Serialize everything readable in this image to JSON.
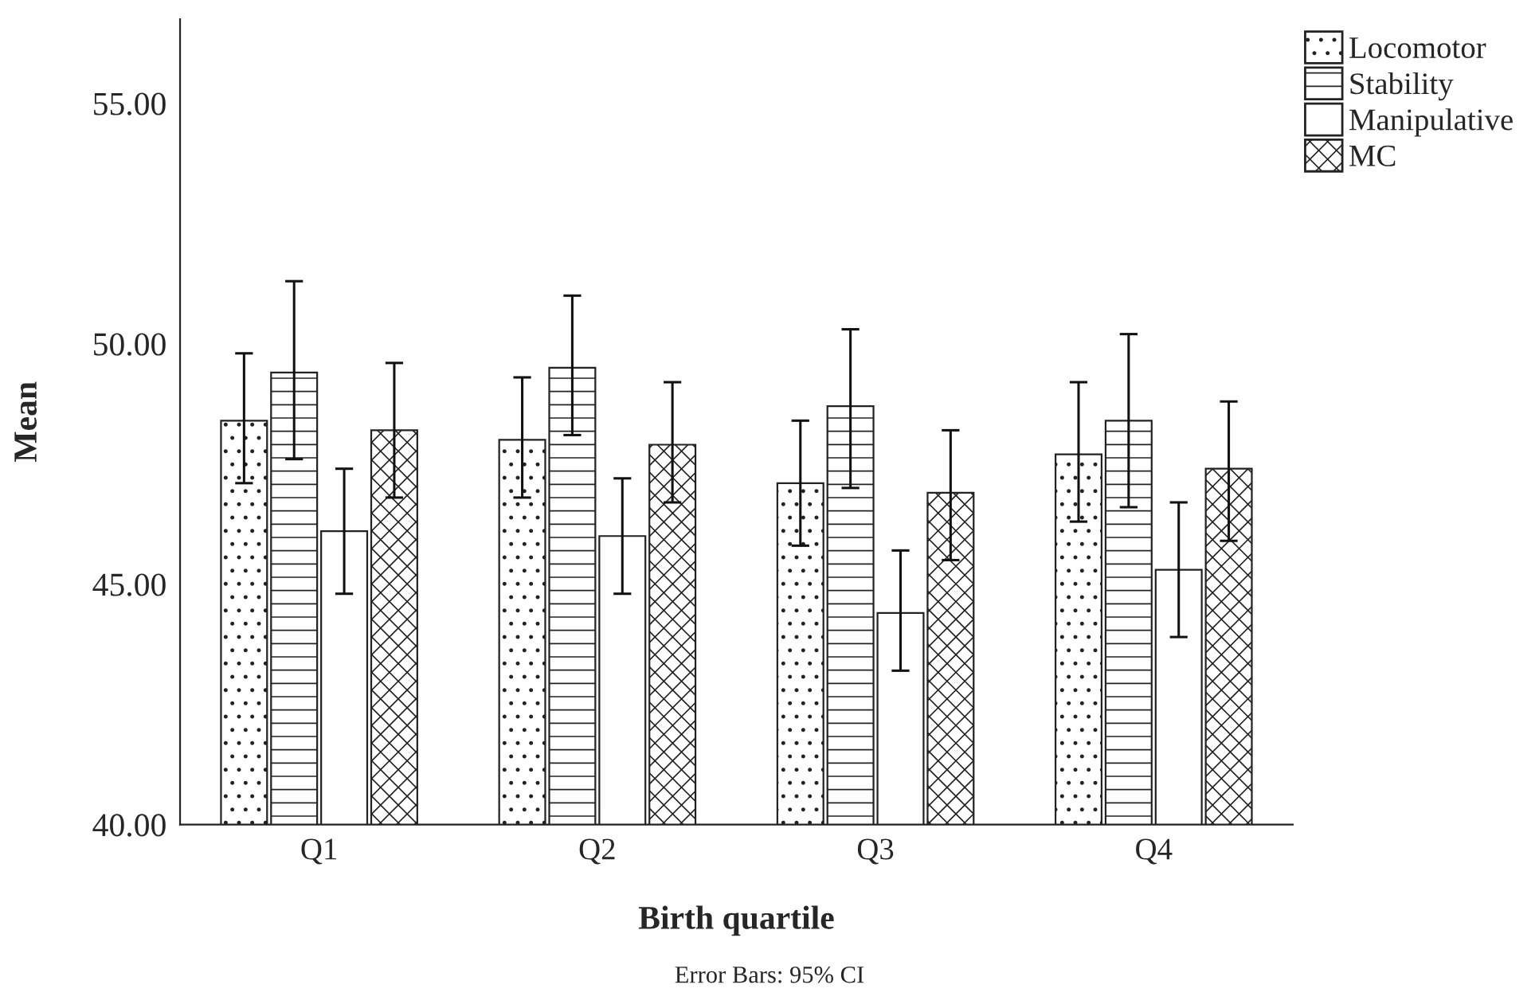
{
  "chart_data": {
    "type": "bar",
    "xlabel": "Birth quartile",
    "ylabel": "Mean",
    "categories": [
      "Q1",
      "Q2",
      "Q3",
      "Q4"
    ],
    "series": [
      {
        "name": "Locomotor",
        "color": "#222222",
        "values": [
          48.4,
          48.0,
          47.1,
          47.7
        ],
        "errors": [
          [
            47.1,
            49.8
          ],
          [
            46.8,
            49.3
          ],
          [
            45.8,
            48.4
          ],
          [
            46.3,
            49.2
          ]
        ]
      },
      {
        "name": "Stability",
        "color": "#222222",
        "values": [
          49.4,
          49.5,
          48.7,
          48.4
        ],
        "errors": [
          [
            47.6,
            51.3
          ],
          [
            48.1,
            51.0
          ],
          [
            47.0,
            50.3
          ],
          [
            46.6,
            50.2
          ]
        ]
      },
      {
        "name": "Manipulative",
        "color": "#ffffff",
        "values": [
          46.1,
          46.0,
          44.4,
          45.3
        ],
        "errors": [
          [
            44.8,
            47.4
          ],
          [
            44.8,
            47.2
          ],
          [
            43.2,
            45.7
          ],
          [
            43.9,
            46.7
          ]
        ]
      },
      {
        "name": "MC",
        "color": "#222222",
        "values": [
          48.2,
          47.9,
          46.9,
          47.4
        ],
        "errors": [
          [
            46.8,
            49.6
          ],
          [
            46.7,
            49.2
          ],
          [
            45.5,
            48.2
          ],
          [
            45.9,
            48.8
          ]
        ]
      }
    ],
    "ylim": [
      40,
      56.75
    ],
    "yticks": [
      {
        "value": 40,
        "label": "40.00"
      },
      {
        "value": 45,
        "label": "45.00"
      },
      {
        "value": 50,
        "label": "50.00"
      },
      {
        "value": 55,
        "label": "55.00"
      }
    ],
    "grid": false,
    "legend": "top right",
    "annotations": [
      "Error Bars: 95% CI"
    ]
  }
}
